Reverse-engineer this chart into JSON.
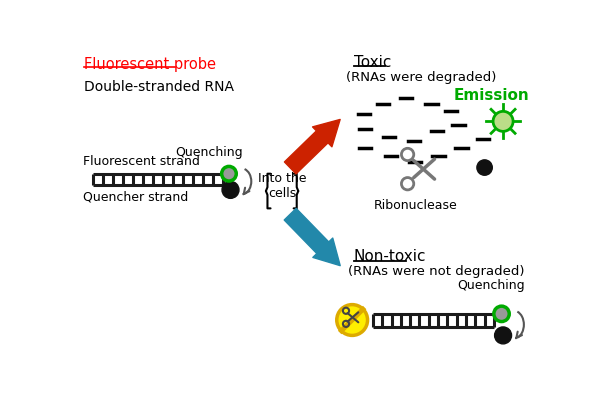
{
  "bg_color": "#ffffff",
  "fluorescent_probe_label": "Fluorescent probe",
  "double_stranded_label": "Double-stranded RNA",
  "fluorescent_strand_label": "Fluorescent strand",
  "quencher_strand_label": "Quencher strand",
  "quenching_label": "Quenching",
  "into_cells_label": "Into the\ncells",
  "toxic_label": "Toxic",
  "toxic_sub_label": "(RNAs were degraded)",
  "emission_label": "Emission",
  "ribonuclease_label": "Ribonuclease",
  "non_toxic_label": "Non-toxic",
  "non_toxic_sub_label": "(RNAs were not degraded)",
  "quenching_label2": "Quenching",
  "green_color": "#00aa00",
  "red_arrow_color": "#cc2200",
  "teal_arrow_color": "#2288aa",
  "ladder_color": "#1a1a1a",
  "fluorescent_fill": "#999999",
  "fluorescent_border": "#00aa00",
  "quencher_fill": "#111111",
  "sun_fill": "#bbdd88",
  "sun_border": "#00aa00",
  "no_sign_yellow": "#ffee00",
  "no_sign_border": "#ddaa00",
  "scissors_color": "#777777"
}
